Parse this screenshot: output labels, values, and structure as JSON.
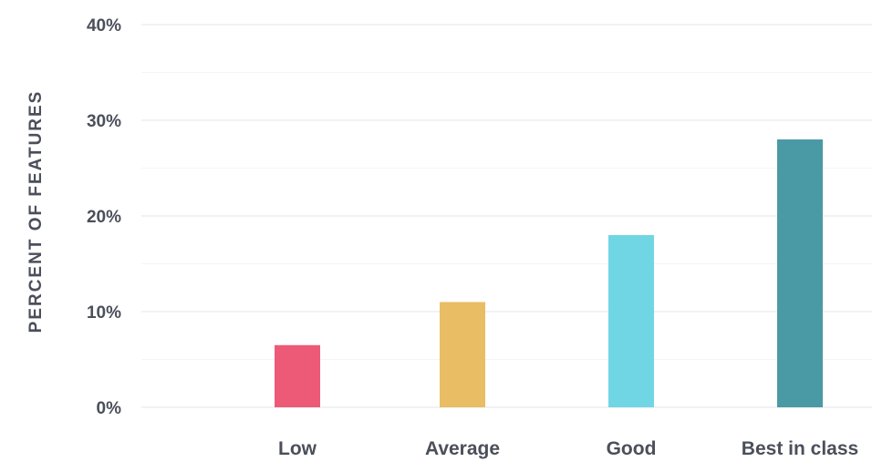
{
  "chart_data": {
    "type": "bar",
    "categories": [
      "Low",
      "Average",
      "Good",
      "Best in class"
    ],
    "values": [
      6.5,
      11,
      18,
      28
    ],
    "colors": [
      "#ed5a78",
      "#e8bd63",
      "#70d6e3",
      "#4a9aa5"
    ],
    "ylabel": "PERCENT OF FEATURES",
    "ylim": [
      0,
      40
    ],
    "yticks": [
      0,
      10,
      20,
      30,
      40
    ],
    "ytick_labels": [
      "0%",
      "10%",
      "20%",
      "30%",
      "40%"
    ],
    "grid": true
  }
}
